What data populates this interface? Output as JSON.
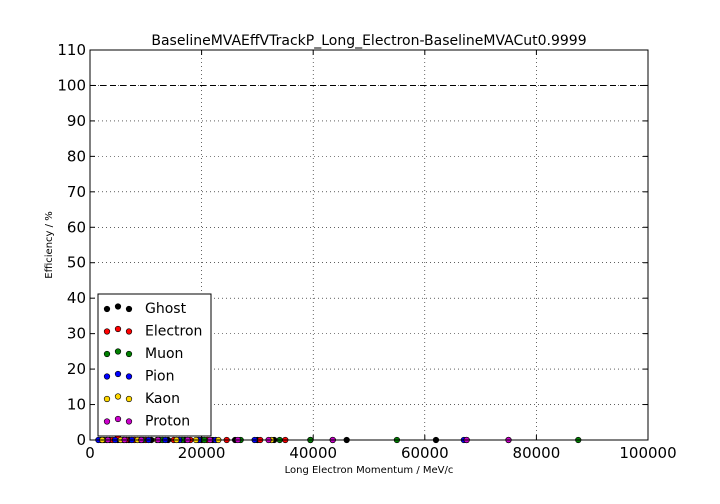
{
  "chart_data": {
    "type": "scatter",
    "title": "BaselineMVAEffVTrackP_Long_Electron-BaselineMVACut0.9999",
    "xlabel": "Long Electron Momentum / MeV/c",
    "ylabel": "Efficiency / %",
    "xlim": [
      0,
      100000
    ],
    "ylim": [
      0,
      110
    ],
    "xticks": [
      0,
      20000,
      40000,
      60000,
      80000,
      100000
    ],
    "yticks": [
      0,
      10,
      20,
      30,
      40,
      50,
      60,
      70,
      80,
      90,
      100,
      110
    ],
    "grid": true,
    "reference_line": {
      "y": 100,
      "style": "dashed"
    },
    "legend": {
      "placement": "lower-left"
    },
    "series": [
      {
        "name": "Ghost",
        "color": "#000000",
        "x": [
          2000,
          3500,
          5000,
          7000,
          9000,
          11000,
          14000,
          17000,
          20000,
          22000,
          26000,
          30000,
          33000,
          39500,
          46000,
          62000,
          67500,
          75000
        ],
        "y": [
          0,
          0,
          0,
          0,
          0,
          0,
          0,
          0,
          0,
          0,
          0,
          0,
          0,
          0,
          0,
          0,
          0,
          0
        ]
      },
      {
        "name": "Electron",
        "color": "#ff0000",
        "x": [
          2500,
          4000,
          5000,
          6500,
          8000,
          10000,
          12500,
          15000,
          18000,
          21000,
          24500,
          30500,
          35000
        ],
        "y": [
          0,
          0,
          0.8,
          0,
          0,
          0,
          0,
          0,
          0,
          0,
          0,
          0,
          0
        ]
      },
      {
        "name": "Muon",
        "color": "#008000",
        "x": [
          3000,
          6000,
          9500,
          13000,
          16500,
          20500,
          27000,
          34000,
          39500,
          55000,
          87500
        ],
        "y": [
          0,
          0,
          0,
          0,
          0,
          0,
          0,
          0,
          0,
          0,
          0
        ]
      },
      {
        "name": "Pion",
        "color": "#0000ff",
        "x": [
          1500,
          4500,
          7500,
          10500,
          13500,
          16000,
          19500,
          22500,
          29500,
          43500,
          67000
        ],
        "y": [
          0,
          0,
          0,
          0,
          0,
          0,
          0,
          0,
          0,
          0,
          0
        ]
      },
      {
        "name": "Kaon",
        "color": "#ffd700",
        "x": [
          2200,
          5500,
          8500,
          12000,
          15500,
          19000,
          23000,
          32500
        ],
        "y": [
          0,
          0,
          0,
          0,
          0,
          0,
          0,
          0
        ]
      },
      {
        "name": "Proton",
        "color": "#cc00cc",
        "x": [
          3200,
          6200,
          9200,
          12200,
          17500,
          21500,
          26500,
          32000,
          43500,
          67500,
          75000
        ],
        "y": [
          0,
          0,
          0,
          0,
          0,
          0,
          0,
          0,
          0,
          0,
          0
        ]
      }
    ]
  }
}
